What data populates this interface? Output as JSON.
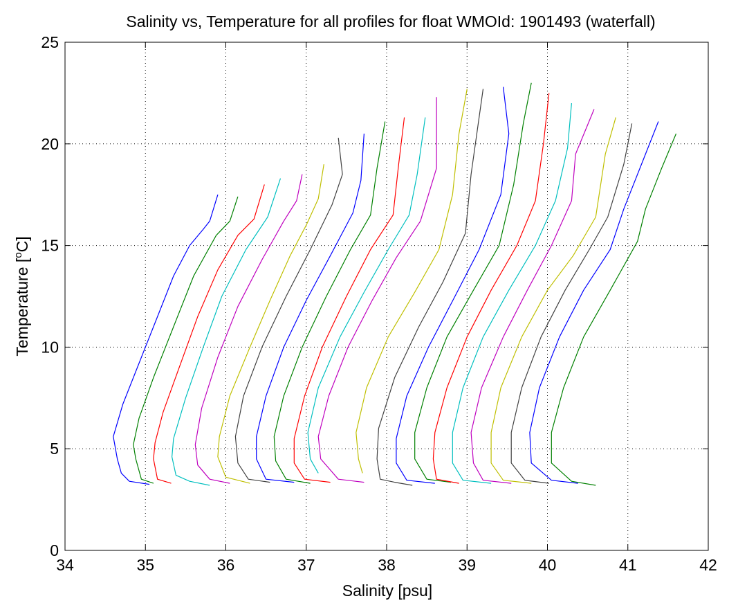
{
  "chart_data": {
    "type": "line",
    "title": "Salinity vs, Temperature for all profiles for float WMOId: 1901493 (waterfall)",
    "xlabel": "Salinity [psu]",
    "ylabel_main": "Temperature [",
    "ylabel_sup": "o",
    "ylabel_tail": "C]",
    "xlim": [
      34,
      42
    ],
    "ylim": [
      0,
      25
    ],
    "xticks": [
      34,
      35,
      36,
      37,
      38,
      39,
      40,
      41,
      42
    ],
    "yticks": [
      0,
      5,
      10,
      15,
      20,
      25
    ],
    "grid": true,
    "legend": "none",
    "waterfall_offset_psu": 0.25,
    "palette": [
      "#0000ff",
      "#008000",
      "#ff0000",
      "#00bfbf",
      "#bf00bf",
      "#bfbf00",
      "#404040"
    ],
    "series": [
      {
        "color": "#0000ff",
        "values": [
          [
            35.05,
            3.25
          ],
          [
            34.8,
            3.4
          ],
          [
            34.7,
            3.8
          ],
          [
            34.65,
            4.5
          ],
          [
            34.6,
            5.6
          ],
          [
            34.72,
            7.2
          ],
          [
            34.95,
            9.5
          ],
          [
            35.15,
            11.5
          ],
          [
            35.35,
            13.5
          ],
          [
            35.55,
            15
          ],
          [
            35.72,
            15.8
          ],
          [
            35.8,
            16.2
          ],
          [
            35.9,
            17.5
          ]
        ]
      },
      {
        "color": "#008000",
        "values": [
          [
            35.1,
            3.3
          ],
          [
            34.95,
            3.5
          ],
          [
            34.88,
            4.5
          ],
          [
            34.85,
            5.2
          ],
          [
            34.92,
            6.5
          ],
          [
            35.1,
            8.5
          ],
          [
            35.35,
            11
          ],
          [
            35.6,
            13.5
          ],
          [
            35.88,
            15.5
          ],
          [
            36.05,
            16.2
          ],
          [
            36.15,
            17.4
          ]
        ]
      },
      {
        "color": "#ff0000",
        "values": [
          [
            35.32,
            3.3
          ],
          [
            35.15,
            3.5
          ],
          [
            35.1,
            4.5
          ],
          [
            35.12,
            5.3
          ],
          [
            35.22,
            6.8
          ],
          [
            35.42,
            9
          ],
          [
            35.65,
            11.5
          ],
          [
            35.9,
            13.8
          ],
          [
            36.15,
            15.5
          ],
          [
            36.35,
            16.3
          ],
          [
            36.48,
            18
          ]
        ]
      },
      {
        "color": "#00bfbf",
        "values": [
          [
            35.8,
            3.2
          ],
          [
            35.55,
            3.4
          ],
          [
            35.38,
            3.7
          ],
          [
            35.33,
            4.6
          ],
          [
            35.35,
            5.5
          ],
          [
            35.5,
            7.5
          ],
          [
            35.72,
            10
          ],
          [
            35.95,
            12.5
          ],
          [
            36.25,
            14.8
          ],
          [
            36.52,
            16.4
          ],
          [
            36.68,
            18.3
          ]
        ]
      },
      {
        "color": "#bf00bf",
        "values": [
          [
            36.05,
            3.3
          ],
          [
            35.8,
            3.5
          ],
          [
            35.65,
            4.2
          ],
          [
            35.62,
            5.2
          ],
          [
            35.7,
            7
          ],
          [
            35.9,
            9.5
          ],
          [
            36.15,
            12
          ],
          [
            36.45,
            14.3
          ],
          [
            36.72,
            16.2
          ],
          [
            36.88,
            17.2
          ],
          [
            36.95,
            18.5
          ]
        ]
      },
      {
        "color": "#bfbf00",
        "values": [
          [
            36.3,
            3.3
          ],
          [
            36.0,
            3.6
          ],
          [
            35.9,
            4.6
          ],
          [
            35.92,
            5.6
          ],
          [
            36.05,
            7.6
          ],
          [
            36.3,
            10
          ],
          [
            36.55,
            12.3
          ],
          [
            36.8,
            14.5
          ],
          [
            37.0,
            16
          ],
          [
            37.15,
            17.3
          ],
          [
            37.22,
            19
          ]
        ]
      },
      {
        "color": "#404040",
        "values": [
          [
            36.55,
            3.35
          ],
          [
            36.28,
            3.5
          ],
          [
            36.15,
            4.3
          ],
          [
            36.12,
            5.6
          ],
          [
            36.22,
            7.6
          ],
          [
            36.45,
            10
          ],
          [
            36.75,
            12.5
          ],
          [
            37.05,
            14.8
          ],
          [
            37.32,
            17
          ],
          [
            37.45,
            18.5
          ],
          [
            37.4,
            20.3
          ]
        ]
      },
      {
        "color": "#0000ff",
        "values": [
          [
            36.85,
            3.35
          ],
          [
            36.5,
            3.5
          ],
          [
            36.38,
            4.5
          ],
          [
            36.38,
            5.6
          ],
          [
            36.5,
            7.6
          ],
          [
            36.72,
            10
          ],
          [
            37.0,
            12.3
          ],
          [
            37.3,
            14.5
          ],
          [
            37.58,
            16.6
          ],
          [
            37.68,
            18.2
          ],
          [
            37.72,
            20.5
          ]
        ]
      },
      {
        "color": "#008000",
        "values": [
          [
            37.05,
            3.3
          ],
          [
            36.75,
            3.5
          ],
          [
            36.62,
            4.4
          ],
          [
            36.6,
            5.6
          ],
          [
            36.72,
            7.6
          ],
          [
            36.95,
            10
          ],
          [
            37.25,
            12.5
          ],
          [
            37.55,
            14.8
          ],
          [
            37.8,
            16.5
          ],
          [
            37.88,
            18.8
          ],
          [
            37.98,
            21.1
          ]
        ]
      },
      {
        "color": "#00bfbf",
        "values": [
          [
            37.15,
            3.8
          ],
          [
            37.05,
            4.5
          ],
          [
            37.02,
            5.8
          ],
          [
            37.15,
            8
          ],
          [
            37.42,
            10.5
          ],
          [
            37.72,
            12.7
          ],
          [
            38.02,
            14.8
          ],
          [
            38.28,
            16.5
          ],
          [
            38.38,
            18.5
          ],
          [
            38.48,
            21.3
          ]
        ]
      },
      {
        "color": "#ff0000",
        "values": [
          [
            37.3,
            3.35
          ],
          [
            36.98,
            3.5
          ],
          [
            36.85,
            4.3
          ],
          [
            36.85,
            5.5
          ],
          [
            36.98,
            7.6
          ],
          [
            37.2,
            10
          ],
          [
            37.5,
            12.5
          ],
          [
            37.8,
            14.8
          ],
          [
            38.08,
            16.5
          ],
          [
            38.15,
            19
          ],
          [
            38.22,
            21.3
          ]
        ]
      },
      {
        "color": "#bf00bf",
        "values": [
          [
            37.72,
            3.35
          ],
          [
            37.4,
            3.5
          ],
          [
            37.18,
            4.5
          ],
          [
            37.15,
            5.6
          ],
          [
            37.28,
            7.6
          ],
          [
            37.52,
            10
          ],
          [
            37.82,
            12.3
          ],
          [
            38.12,
            14.4
          ],
          [
            38.42,
            16.2
          ],
          [
            38.62,
            18.8
          ],
          [
            38.62,
            22.3
          ]
        ]
      },
      {
        "color": "#bfbf00",
        "values": [
          [
            37.7,
            3.8
          ],
          [
            37.65,
            4.5
          ],
          [
            37.62,
            5.8
          ],
          [
            37.75,
            8
          ],
          [
            38.02,
            10.5
          ],
          [
            38.35,
            12.7
          ],
          [
            38.65,
            14.8
          ],
          [
            38.82,
            17.5
          ],
          [
            38.9,
            20.5
          ],
          [
            39.0,
            22.7
          ]
        ]
      },
      {
        "color": "#404040",
        "values": [
          [
            38.32,
            3.2
          ],
          [
            38.1,
            3.35
          ],
          [
            37.92,
            3.5
          ],
          [
            37.88,
            4.5
          ],
          [
            37.9,
            6
          ],
          [
            38.1,
            8.5
          ],
          [
            38.4,
            11
          ],
          [
            38.7,
            13.2
          ],
          [
            38.98,
            15.6
          ],
          [
            39.05,
            18.5
          ],
          [
            39.2,
            22.7
          ]
        ]
      },
      {
        "color": "#0000ff",
        "values": [
          [
            38.6,
            3.3
          ],
          [
            38.25,
            3.45
          ],
          [
            38.12,
            4.3
          ],
          [
            38.12,
            5.5
          ],
          [
            38.25,
            7.6
          ],
          [
            38.52,
            10
          ],
          [
            38.85,
            12.5
          ],
          [
            39.15,
            14.8
          ],
          [
            39.42,
            17.5
          ],
          [
            39.52,
            20.5
          ],
          [
            39.45,
            22.8
          ]
        ]
      },
      {
        "color": "#008000",
        "values": [
          [
            38.8,
            3.35
          ],
          [
            38.5,
            3.5
          ],
          [
            38.35,
            4.5
          ],
          [
            38.35,
            5.8
          ],
          [
            38.5,
            8
          ],
          [
            38.75,
            10.5
          ],
          [
            39.08,
            12.8
          ],
          [
            39.4,
            15
          ],
          [
            39.58,
            18
          ],
          [
            39.7,
            21
          ],
          [
            39.8,
            23
          ]
        ]
      },
      {
        "color": "#ff0000",
        "values": [
          [
            38.9,
            3.3
          ],
          [
            38.62,
            3.5
          ],
          [
            38.58,
            4.5
          ],
          [
            38.6,
            5.8
          ],
          [
            38.75,
            8
          ],
          [
            39.0,
            10.5
          ],
          [
            39.3,
            12.8
          ],
          [
            39.62,
            15
          ],
          [
            39.85,
            17.2
          ],
          [
            39.95,
            20
          ],
          [
            40.02,
            22.5
          ]
        ]
      },
      {
        "color": "#00bfbf",
        "values": [
          [
            39.3,
            3.3
          ],
          [
            38.95,
            3.45
          ],
          [
            38.82,
            4.3
          ],
          [
            38.82,
            5.8
          ],
          [
            38.95,
            8
          ],
          [
            39.2,
            10.5
          ],
          [
            39.52,
            12.8
          ],
          [
            39.85,
            15
          ],
          [
            40.1,
            17.2
          ],
          [
            40.25,
            19.8
          ],
          [
            40.3,
            22
          ]
        ]
      },
      {
        "color": "#bf00bf",
        "values": [
          [
            39.55,
            3.3
          ],
          [
            39.2,
            3.45
          ],
          [
            39.08,
            4.3
          ],
          [
            39.05,
            5.8
          ],
          [
            39.18,
            8
          ],
          [
            39.45,
            10.5
          ],
          [
            39.75,
            12.8
          ],
          [
            40.05,
            15
          ],
          [
            40.3,
            17.2
          ],
          [
            40.35,
            19.5
          ],
          [
            40.58,
            21.7
          ]
        ]
      },
      {
        "color": "#bfbf00",
        "values": [
          [
            39.8,
            3.3
          ],
          [
            39.45,
            3.45
          ],
          [
            39.3,
            4.3
          ],
          [
            39.3,
            5.8
          ],
          [
            39.42,
            8
          ],
          [
            39.68,
            10.5
          ],
          [
            40.0,
            12.8
          ],
          [
            40.32,
            14.5
          ],
          [
            40.6,
            16.4
          ],
          [
            40.72,
            19.5
          ],
          [
            40.85,
            21.3
          ]
        ]
      },
      {
        "color": "#404040",
        "values": [
          [
            40.02,
            3.3
          ],
          [
            39.72,
            3.45
          ],
          [
            39.55,
            4.3
          ],
          [
            39.55,
            5.8
          ],
          [
            39.68,
            8
          ],
          [
            39.92,
            10.5
          ],
          [
            40.22,
            12.8
          ],
          [
            40.52,
            14.8
          ],
          [
            40.75,
            16.4
          ],
          [
            40.95,
            19
          ],
          [
            41.05,
            21
          ]
        ]
      },
      {
        "color": "#0000ff",
        "values": [
          [
            40.38,
            3.3
          ],
          [
            40.05,
            3.45
          ],
          [
            39.8,
            4.3
          ],
          [
            39.78,
            5.8
          ],
          [
            39.9,
            8
          ],
          [
            40.15,
            10.5
          ],
          [
            40.45,
            12.8
          ],
          [
            40.78,
            14.8
          ],
          [
            40.95,
            16.8
          ],
          [
            41.2,
            19.3
          ],
          [
            41.38,
            21.1
          ]
        ]
      },
      {
        "color": "#008000",
        "values": [
          [
            40.6,
            3.2
          ],
          [
            40.3,
            3.4
          ],
          [
            40.05,
            4.3
          ],
          [
            40.05,
            5.8
          ],
          [
            40.2,
            8
          ],
          [
            40.45,
            10.5
          ],
          [
            40.78,
            12.8
          ],
          [
            41.12,
            15.2
          ],
          [
            41.22,
            16.8
          ],
          [
            41.42,
            18.8
          ],
          [
            41.6,
            20.5
          ]
        ]
      }
    ]
  }
}
